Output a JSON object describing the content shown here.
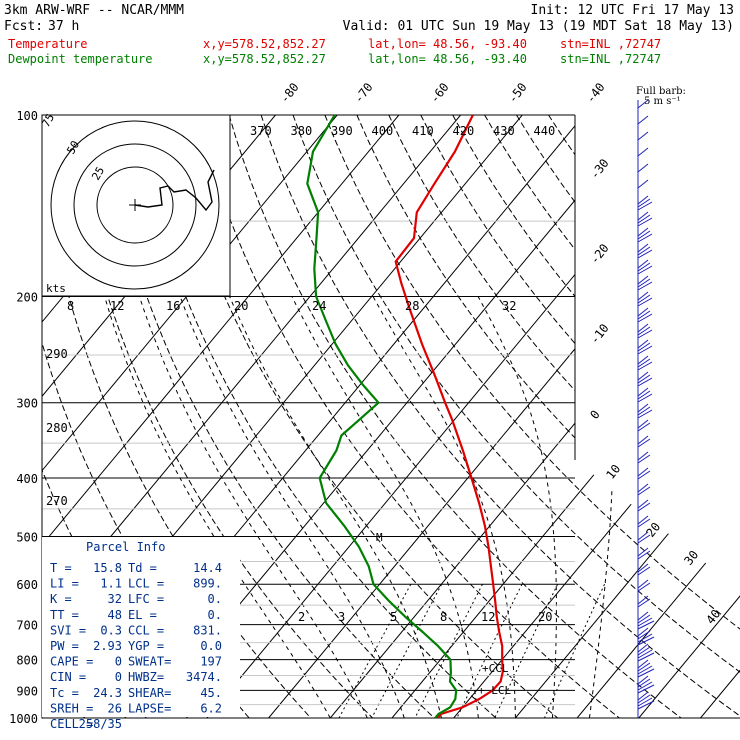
{
  "header": {
    "line1_left": "3km ARW-WRF -- NCAR/MMM",
    "line1_right": "Init: 12 UTC Fri 17 May 13",
    "fcst_label": "Fcst:",
    "fcst_value": "37 h",
    "valid": "Valid: 01 UTC Sun 19 May 13 (19 MDT Sat 18 May 13)",
    "legend": [
      {
        "name": "Temperature",
        "xy": "x,y=578.52,852.27",
        "latlon": "lat,lon= 48.56, -93.40",
        "stn": "stn=INL ,72747",
        "color": "#e00000"
      },
      {
        "name": "Dewpoint temperature",
        "xy": "x,y=578.52,852.27",
        "latlon": "lat,lon= 48.56, -93.40",
        "stn": "stn=INL ,72747",
        "color": "#008000"
      }
    ]
  },
  "colors": {
    "temperature": "#e00000",
    "dewpoint": "#008000",
    "wind": "#2020c0",
    "parcel_text": "#00308a"
  },
  "chart_data": {
    "type": "line",
    "diagram": "skew-T log-p",
    "pressure_levels": [
      "100",
      "200",
      "300",
      "400",
      "500",
      "600",
      "700",
      "800",
      "900",
      "1000"
    ],
    "top_isotherm_labels": [
      "-80",
      "-70",
      "-60",
      "-50",
      "-40"
    ],
    "right_isotherm_labels": [
      "-30",
      "-20",
      "-10",
      "0",
      "10",
      "20",
      "30",
      "40"
    ],
    "theta_e_labels": [
      "370",
      "380",
      "390",
      "400",
      "410",
      "420",
      "430",
      "440"
    ],
    "hodo_speed_labels": [
      "8",
      "12",
      "16",
      "20",
      "24",
      "28",
      "32"
    ],
    "theta_labels": [
      "290",
      "280",
      "270"
    ],
    "mixing_ratio_labels": [
      "2",
      "3",
      "5",
      "8",
      "12",
      "20"
    ],
    "hodograph": {
      "ring_labels": [
        "75",
        "50",
        "25"
      ],
      "unit": "kts"
    },
    "wind_barb_legend": {
      "title": "Full barb:",
      "value": "5 m s⁻¹"
    },
    "ccl_label": "+CCL",
    "lcl_label": "+ LCL",
    "m_marker": "M",
    "series": [
      {
        "name": "Temperature",
        "p": [
          1000,
          985,
          960,
          930,
          900,
          870,
          840,
          800,
          760,
          720,
          680,
          640,
          600,
          560,
          520,
          480,
          440,
          400,
          360,
          320,
          300,
          270,
          240,
          210,
          190,
          175,
          160,
          145,
          130,
          115,
          100
        ],
        "t": [
          7.4,
          7.4,
          10,
          11.6,
          12.6,
          12.7,
          11.8,
          10,
          8.2,
          5.8,
          3.4,
          1.0,
          -1.6,
          -4.4,
          -7.4,
          -10.8,
          -14.8,
          -19.4,
          -24.5,
          -30.4,
          -33.8,
          -39.2,
          -45.4,
          -52.1,
          -57.0,
          -60.8,
          -61.0,
          -64.0,
          -65.0,
          -66.0,
          -68.0
        ]
      },
      {
        "name": "Dewpoint temperature",
        "p": [
          1000,
          985,
          960,
          930,
          900,
          870,
          840,
          800,
          760,
          720,
          680,
          640,
          600,
          560,
          520,
          480,
          440,
          400,
          360,
          340,
          320,
          300,
          280,
          260,
          240,
          220,
          200,
          180,
          160,
          145,
          130,
          115,
          100
        ],
        "t": [
          7.0,
          7.0,
          8.0,
          7.7,
          6.7,
          4.5,
          3.4,
          1.6,
          -2.2,
          -6.6,
          -11.4,
          -16.2,
          -21.0,
          -24.2,
          -28.4,
          -33.6,
          -39.6,
          -44.0,
          -45.0,
          -46.2,
          -45.4,
          -44.6,
          -49.6,
          -54.6,
          -59.4,
          -64.0,
          -69.0,
          -73.0,
          -76.8,
          -80.0,
          -85.6,
          -89.0,
          -90.4
        ]
      }
    ]
  },
  "parcel_info": {
    "title": "Parcel Info",
    "rows": [
      [
        "T  =",
        "15.8",
        "Td =",
        "14.4"
      ],
      [
        "LI =",
        "1.1",
        "LCL =",
        "899."
      ],
      [
        "K  =",
        "32",
        "LFC =",
        "0."
      ],
      [
        "TT =",
        "48",
        "EL  =",
        "0."
      ],
      [
        "SVI =",
        "0.3",
        "CCL =",
        "831."
      ],
      [
        "PW =",
        "2.93",
        "YGP =",
        "0.0"
      ],
      [
        "CAPE =",
        "0",
        "SWEAT=",
        "197"
      ],
      [
        "CIN =",
        "0",
        "HWBZ=",
        "3474."
      ],
      [
        "Tc =",
        "24.3",
        "SHEAR=",
        "45."
      ],
      [
        "SREH =",
        "26",
        "LAPSE=",
        "6.2"
      ],
      [
        "CELL =",
        "258/35",
        "",
        ""
      ]
    ]
  }
}
